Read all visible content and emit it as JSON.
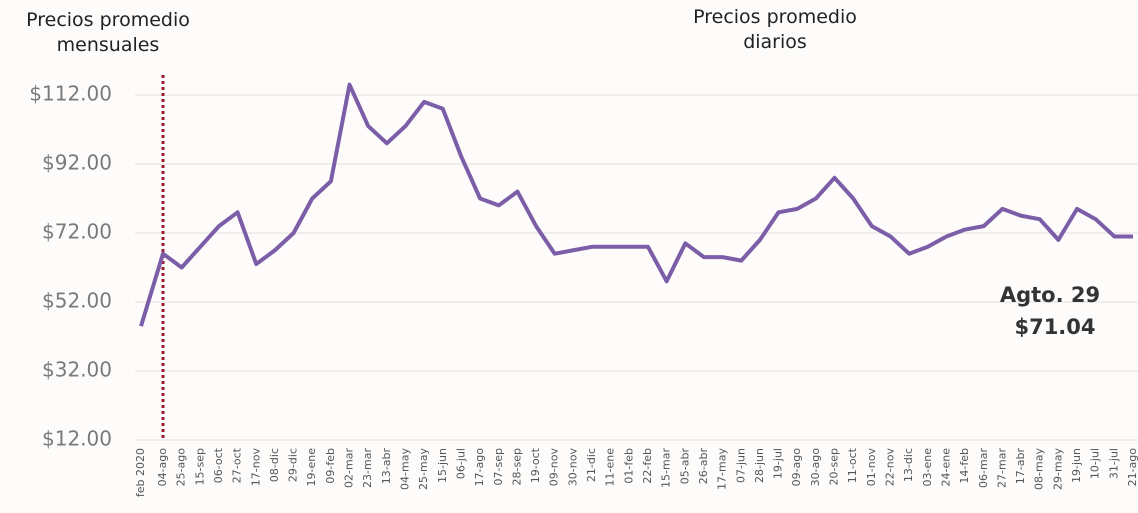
{
  "chart_data": {
    "type": "line",
    "headings": [
      [
        "Precios promedio",
        "mensuales"
      ],
      [
        "Precios promedio",
        "diarios"
      ]
    ],
    "annotations": [
      "Agto. 29",
      "$71.04"
    ],
    "categories": [
      "feb 2020",
      "04-ago",
      "25-ago",
      "15-sep",
      "06-oct",
      "27-oct",
      "17-nov",
      "08-dic",
      "29-dic",
      "19-ene",
      "09-feb",
      "02-mar",
      "23-mar",
      "13-abr",
      "04-may",
      "25-may",
      "15-jun",
      "06-jul",
      "17-ago",
      "07-sep",
      "28-sep",
      "19-oct",
      "09-nov",
      "30-nov",
      "21-dic",
      "11-ene",
      "01-feb",
      "22-feb",
      "15-mar",
      "05-abr",
      "26-abr",
      "17-may",
      "07-jun",
      "28-jun",
      "19-jul",
      "09-ago",
      "30-ago",
      "20-sep",
      "11-oct",
      "01-nov",
      "22-nov",
      "13-dic",
      "03-ene",
      "24-ene",
      "14-feb",
      "06-mar",
      "27-mar",
      "17-abr",
      "08-may",
      "29-may",
      "19-jun",
      "10-jul",
      "31-jul",
      "21-ago"
    ],
    "series": [
      {
        "color": "#7b5ea7",
        "values": [
          45,
          66,
          62,
          68,
          74,
          78,
          63,
          67,
          72,
          82,
          87,
          115,
          103,
          98,
          103,
          110,
          108,
          94,
          82,
          80,
          84,
          74,
          66,
          67,
          68,
          68,
          68,
          68,
          58,
          69,
          65,
          65,
          64,
          70,
          78,
          79,
          82,
          88,
          82,
          74,
          71,
          66,
          68,
          71,
          73,
          74,
          79,
          77,
          76,
          70,
          79,
          76,
          71,
          71
        ]
      }
    ],
    "ylim": [
      12,
      122
    ],
    "yticks": [
      {
        "value": 12,
        "label": "$12.00"
      },
      {
        "value": 32,
        "label": "$32.00"
      },
      {
        "value": 52,
        "label": "$52.00"
      },
      {
        "value": 72,
        "label": "$72.00"
      },
      {
        "value": 92,
        "label": "$92.00"
      },
      {
        "value": 112,
        "label": "$112.00"
      }
    ],
    "grid": true
  }
}
